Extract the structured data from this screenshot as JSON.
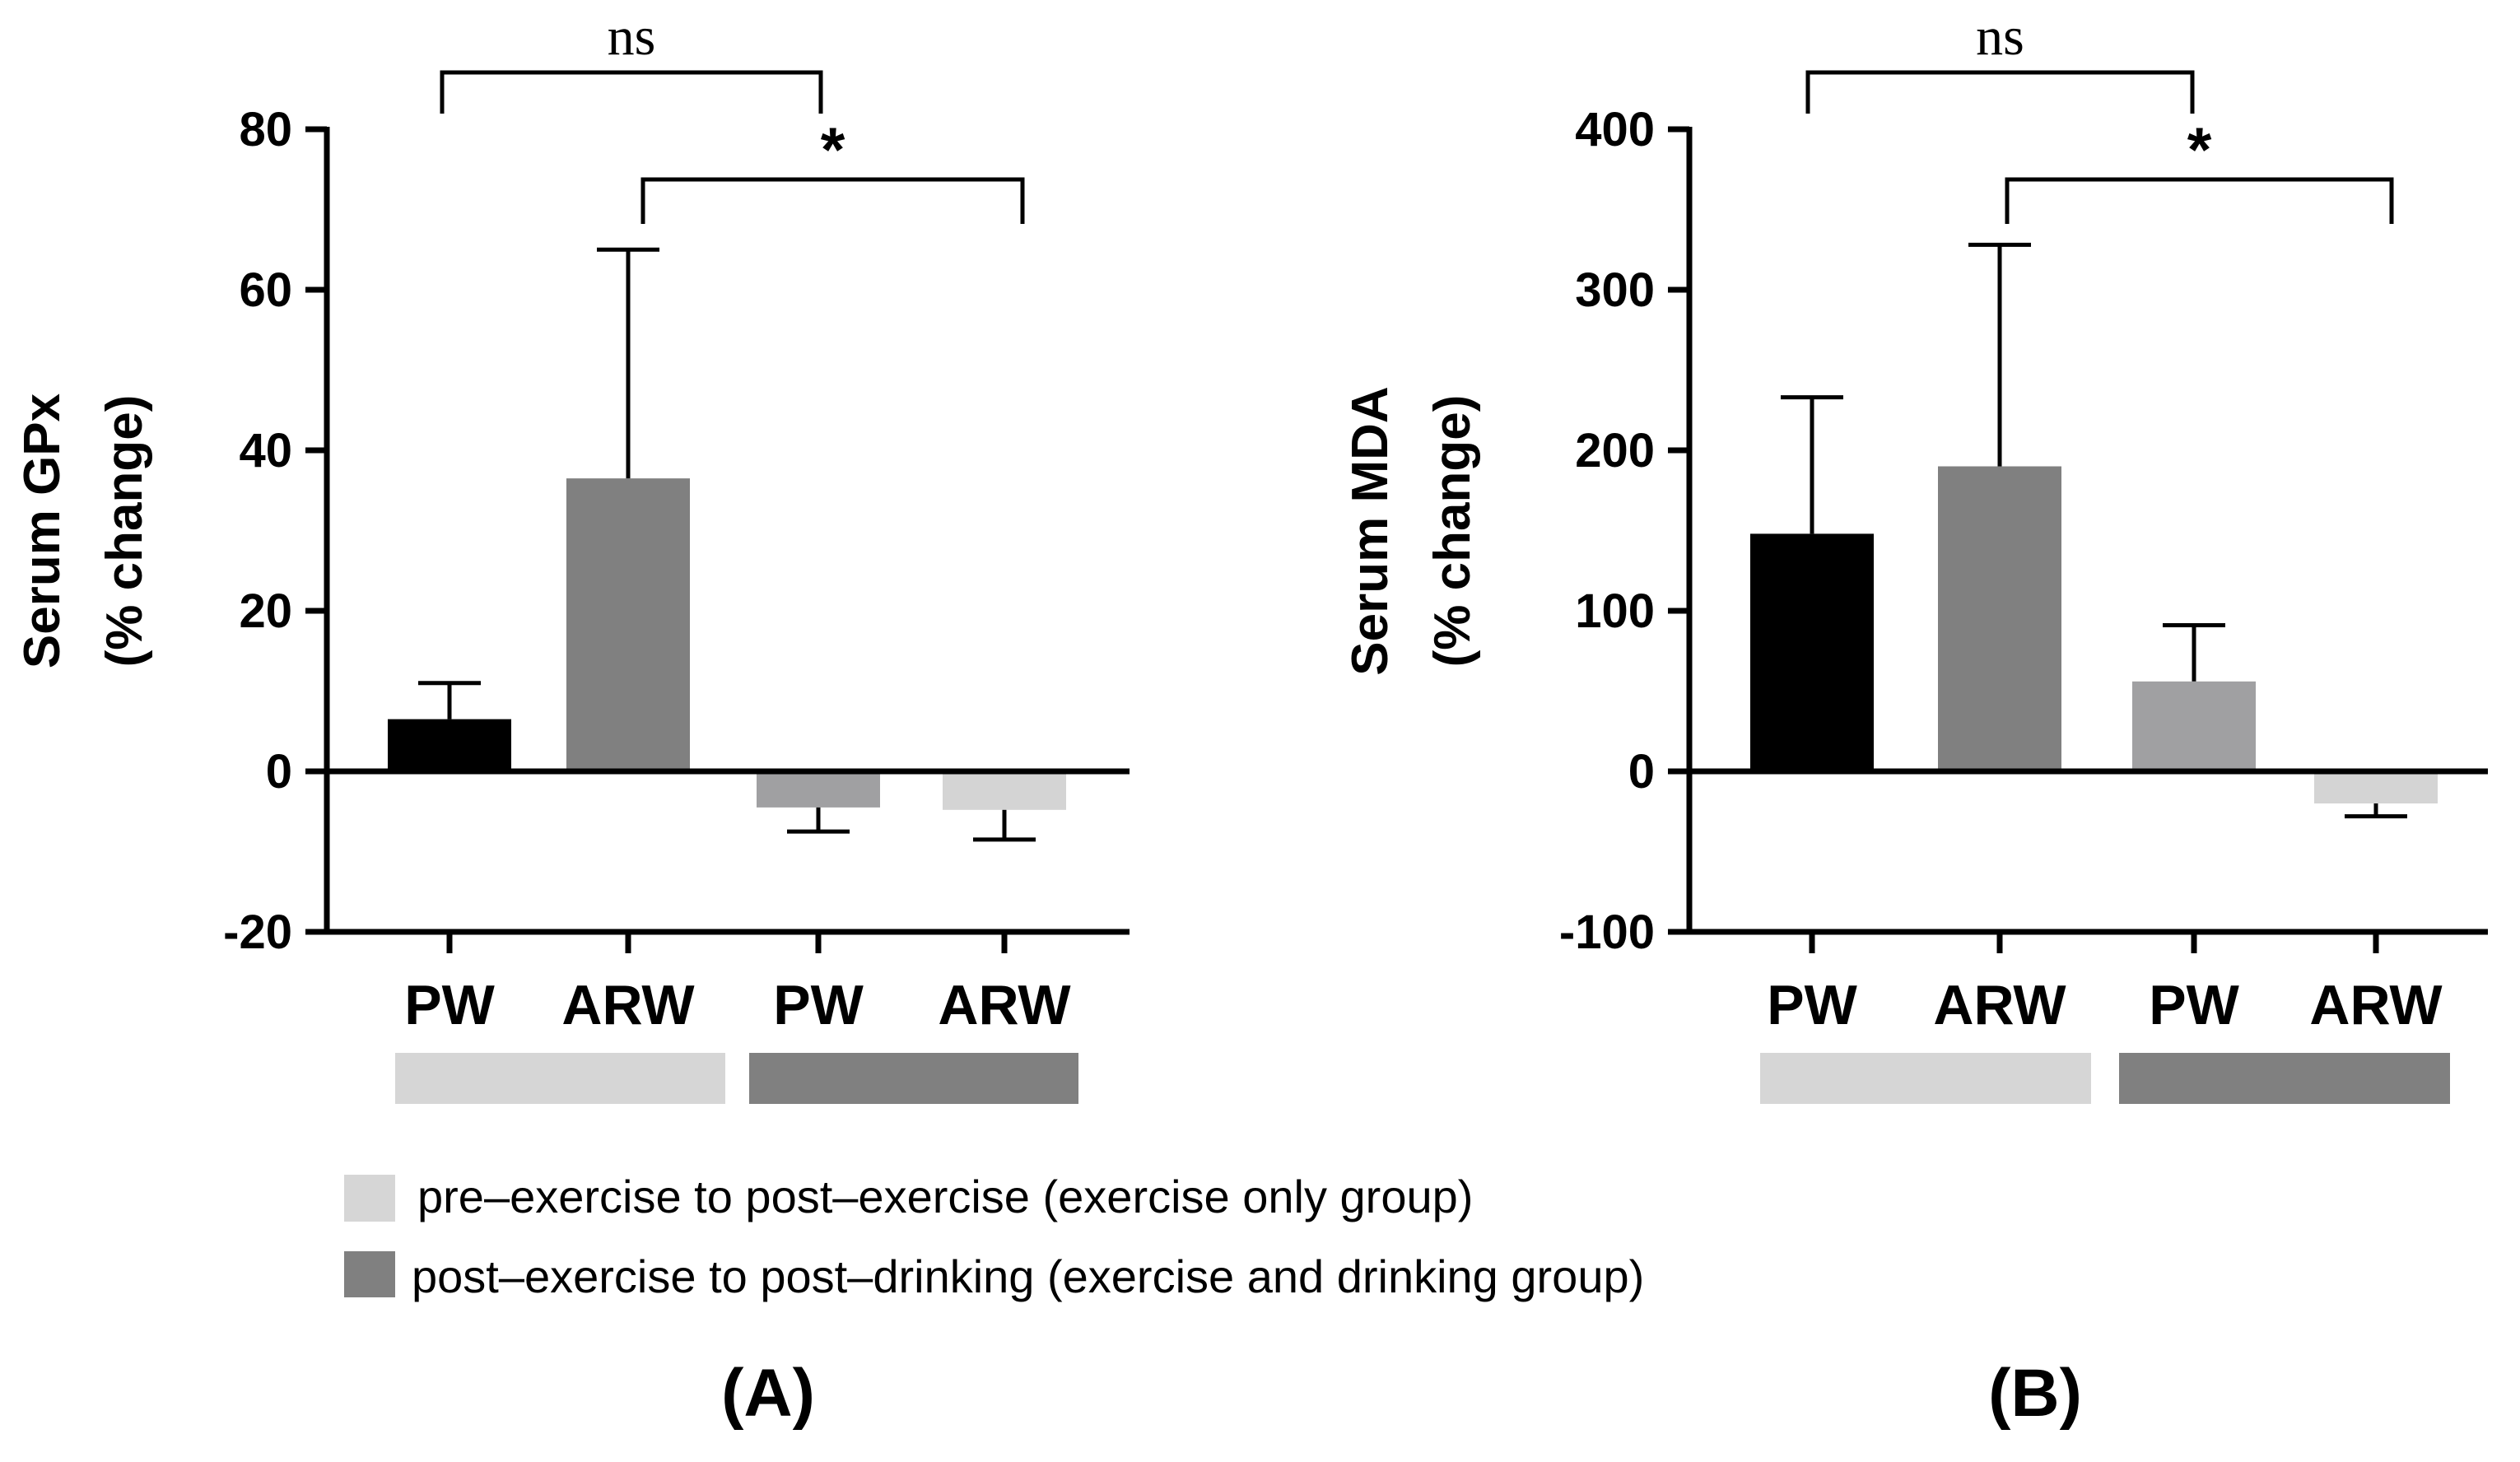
{
  "colors": {
    "axis": "#000000",
    "bar_black": "#000000",
    "bar_dark": "#808080",
    "bar_mid": "#a0a0a2",
    "bar_light": "#d4d4d4",
    "group_light": "#d6d6d6",
    "group_dark": "#808080"
  },
  "legend": {
    "items": [
      {
        "label": "pre–exercise to post–exercise (exercise only group)",
        "color": "#d6d6d6"
      },
      {
        "label": "post–exercise to post–drinking (exercise and drinking group)",
        "color": "#808080"
      }
    ]
  },
  "chart_data": [
    {
      "type": "bar",
      "panel_label": "(A)",
      "ylabel": [
        "Serum GPx",
        "(% change)"
      ],
      "ylim": [
        -20,
        80
      ],
      "yticks": [
        -20,
        0,
        20,
        40,
        60,
        80
      ],
      "categories": [
        "PW",
        "ARW",
        "PW",
        "ARW"
      ],
      "values": [
        6.5,
        36.5,
        -4.5,
        -4.8
      ],
      "errors": [
        4.5,
        28.5,
        3.0,
        3.7
      ],
      "bar_colors": [
        "#000000",
        "#808080",
        "#a0a0a2",
        "#d4d4d4"
      ],
      "groups": [
        {
          "categories": [
            0,
            1
          ],
          "color": "#d6d6d6",
          "legend_index": 0
        },
        {
          "categories": [
            2,
            3
          ],
          "color": "#808080",
          "legend_index": 1
        }
      ],
      "significance": [
        {
          "from": 0,
          "to": 2,
          "label": "ns",
          "level": 2
        },
        {
          "from": 1,
          "to": 3,
          "label": "*",
          "level": 1
        }
      ]
    },
    {
      "type": "bar",
      "panel_label": "(B)",
      "ylabel": [
        "Serum MDA",
        "(% change)"
      ],
      "ylim": [
        -100,
        400
      ],
      "yticks": [
        -100,
        0,
        100,
        200,
        300,
        400
      ],
      "categories": [
        "PW",
        "ARW",
        "PW",
        "ARW"
      ],
      "values": [
        148,
        190,
        56,
        -20
      ],
      "errors": [
        85,
        138,
        35,
        8
      ],
      "bar_colors": [
        "#000000",
        "#808080",
        "#a0a0a2",
        "#d4d4d4"
      ],
      "groups": [
        {
          "categories": [
            0,
            1
          ],
          "color": "#d6d6d6",
          "legend_index": 0
        },
        {
          "categories": [
            2,
            3
          ],
          "color": "#808080",
          "legend_index": 1
        }
      ],
      "significance": [
        {
          "from": 0,
          "to": 2,
          "label": "ns",
          "level": 2
        },
        {
          "from": 1,
          "to": 3,
          "label": "*",
          "level": 1
        }
      ]
    }
  ]
}
